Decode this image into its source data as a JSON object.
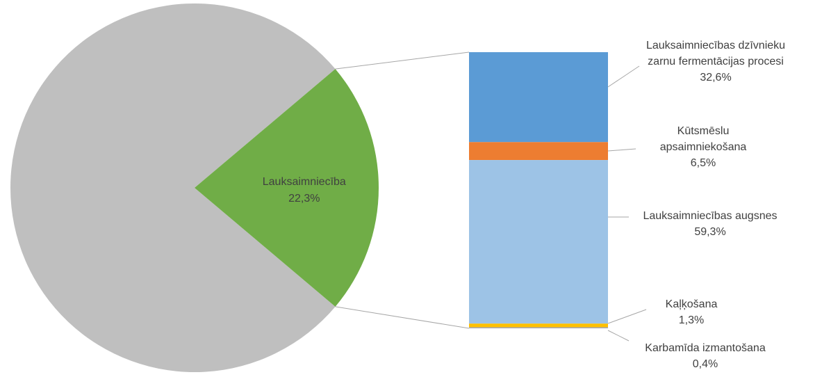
{
  "chart_data": {
    "type": "bar-of-pie",
    "pie": {
      "slices": [
        {
          "label": "",
          "value": 77.7,
          "color": "#bfbfbf",
          "show_label": false
        },
        {
          "label": "Lauksaimniecība",
          "value": 22.3,
          "value_label": "22,3%",
          "color": "#70ad47",
          "show_label": true
        }
      ]
    },
    "bar": {
      "parent_slice": "Lauksaimniecība",
      "segments": [
        {
          "label_lines": [
            "Lauksaimniecības dzīvnieku",
            "zarnu fermentācijas procesi"
          ],
          "value": 32.6,
          "value_label": "32,6%",
          "color": "#5b9bd5"
        },
        {
          "label_lines": [
            "Kūtsmēslu",
            "apsaimniekošana"
          ],
          "value": 6.5,
          "value_label": "6,5%",
          "color": "#ed7d31"
        },
        {
          "label_lines": [
            "Lauksaimniecības augsnes"
          ],
          "value": 59.3,
          "value_label": "59,3%",
          "color": "#9dc3e6"
        },
        {
          "label_lines": [
            "Kaļķošana"
          ],
          "value": 1.3,
          "value_label": "1,3%",
          "color": "#ffc000"
        },
        {
          "label_lines": [
            "Karbamīda izmantošana"
          ],
          "value": 0.4,
          "value_label": "0,4%",
          "color": "#a5a5a5"
        }
      ]
    },
    "colors": {
      "connector": "#a6a6a6",
      "leader": "#a6a6a6",
      "text": "#404040"
    }
  }
}
